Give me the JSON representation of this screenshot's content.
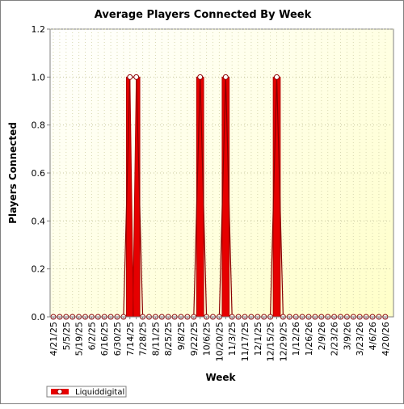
{
  "chart_data": {
    "type": "area",
    "title": "Average Players Connected By Week",
    "xlabel": "Week",
    "ylabel": "Players Connected",
    "ylim": [
      0,
      1.2
    ],
    "yticks": [
      0.0,
      0.2,
      0.4,
      0.6,
      0.8,
      1.0,
      1.2
    ],
    "x_tick_labels": [
      "4/21/25",
      "5/5/25",
      "5/19/25",
      "6/2/25",
      "6/16/25",
      "6/30/25",
      "7/14/25",
      "7/28/25",
      "8/11/25",
      "8/25/25",
      "9/8/25",
      "9/22/25",
      "10/6/25",
      "10/20/25",
      "11/3/25",
      "11/17/25",
      "12/1/25",
      "12/15/25",
      "12/29/25",
      "1/12/26",
      "1/26/26",
      "2/9/26",
      "2/23/26",
      "3/9/26",
      "3/23/26",
      "4/6/26",
      "4/20/26"
    ],
    "x": [
      "4/21/25",
      "4/28/25",
      "5/5/25",
      "5/12/25",
      "5/19/25",
      "5/26/25",
      "6/2/25",
      "6/9/25",
      "6/16/25",
      "6/23/25",
      "6/30/25",
      "7/7/25",
      "7/14/25",
      "7/21/25",
      "7/28/25",
      "8/4/25",
      "8/11/25",
      "8/18/25",
      "8/25/25",
      "9/1/25",
      "9/8/25",
      "9/15/25",
      "9/22/25",
      "9/29/25",
      "10/6/25",
      "10/13/25",
      "10/20/25",
      "10/27/25",
      "11/3/25",
      "11/10/25",
      "11/17/25",
      "11/24/25",
      "12/1/25",
      "12/8/25",
      "12/15/25",
      "12/22/25",
      "12/29/25",
      "1/5/26",
      "1/12/26",
      "1/19/26",
      "1/26/26",
      "2/2/26",
      "2/9/26",
      "2/16/26",
      "2/23/26",
      "3/2/26",
      "3/9/26",
      "3/16/26",
      "3/23/26",
      "3/30/26",
      "4/6/26",
      "4/13/26",
      "4/20/26"
    ],
    "series": [
      {
        "name": "Liquiddigital",
        "color": "#e60000",
        "values": [
          0,
          0,
          0,
          0,
          0,
          0,
          0,
          0,
          0,
          0,
          0,
          0,
          1,
          1,
          0,
          0,
          0,
          0,
          0,
          0,
          0,
          0,
          0,
          1,
          0,
          0,
          0,
          1,
          0,
          0,
          0,
          0,
          0,
          0,
          0,
          1,
          0,
          0,
          0,
          0,
          0,
          0,
          0,
          0,
          0,
          0,
          0,
          0,
          0,
          0,
          0,
          0,
          0
        ]
      }
    ],
    "grid": true,
    "legend_position": "bottom-left",
    "plot_background": "#ffffe0"
  }
}
